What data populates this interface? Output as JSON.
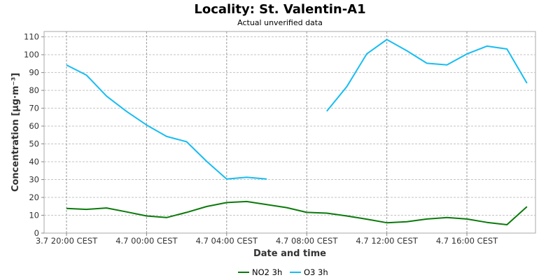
{
  "chart_data": {
    "type": "line",
    "title": "Locality: St. Valentin-A1",
    "subtitle": "Actual unverified data",
    "xlabel": "Date and time",
    "ylabel": "Concentration [µg·m⁻³]",
    "ylim": [
      0,
      113
    ],
    "yticks": [
      0,
      10,
      20,
      30,
      40,
      50,
      60,
      70,
      80,
      90,
      100,
      110
    ],
    "x_tick_labels": [
      "3.7 20:00 CEST",
      "4.7 00:00 CEST",
      "4.7 04:00 CEST",
      "4.7 08:00 CEST",
      "4.7 12:00 CEST",
      "4.7 16:00 CEST"
    ],
    "x": [
      "3.7 20:00",
      "3.7 21:00",
      "3.7 22:00",
      "3.7 23:00",
      "4.7 00:00",
      "4.7 01:00",
      "4.7 02:00",
      "4.7 03:00",
      "4.7 04:00",
      "4.7 05:00",
      "4.7 06:00",
      "4.7 07:00",
      "4.7 08:00",
      "4.7 09:00",
      "4.7 10:00",
      "4.7 11:00",
      "4.7 12:00",
      "4.7 13:00",
      "4.7 14:00",
      "4.7 15:00",
      "4.7 16:00",
      "4.7 17:00",
      "4.7 18:00",
      "4.7 19:00"
    ],
    "grid": true,
    "legend_position": "bottom",
    "series": [
      {
        "name": "NO2 3h",
        "color": "#0a7a0a",
        "values": [
          13.8,
          13.3,
          14.1,
          11.9,
          9.6,
          8.7,
          11.6,
          14.9,
          17.1,
          17.7,
          16.0,
          14.3,
          11.6,
          11.2,
          9.6,
          7.8,
          5.8,
          6.4,
          7.9,
          8.7,
          7.9,
          6.0,
          4.7,
          14.8
        ]
      },
      {
        "name": "O3 3h",
        "color": "#17bdf2",
        "values": [
          94.2,
          88.5,
          76.8,
          68.2,
          60.6,
          54.2,
          51.2,
          40.2,
          30.3,
          31.3,
          30.3,
          null,
          null,
          68.3,
          82.1,
          100.5,
          108.5,
          102.2,
          95.2,
          94.3,
          100.4,
          104.8,
          103.2,
          84.0
        ]
      }
    ]
  }
}
